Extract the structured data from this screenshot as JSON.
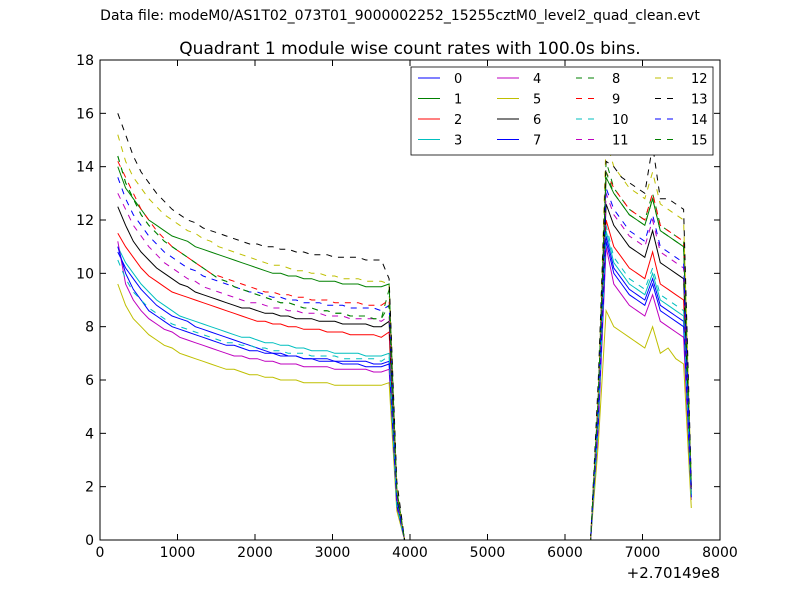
{
  "page": {
    "suptitle": "Data file: modeM0/AS1T02_073T01_9000002252_15255cztM0_level2_quad_clean.evt"
  },
  "chart_data": {
    "type": "line",
    "title": "Quadrant 1 module wise count rates with 100.0s bins.",
    "xlabel": "",
    "ylabel": "",
    "x_offset_label": "+2.70149e8",
    "xlim": [
      0,
      8000
    ],
    "ylim": [
      0,
      18
    ],
    "xticks": [
      0,
      1000,
      2000,
      3000,
      4000,
      5000,
      6000,
      7000,
      8000
    ],
    "yticks": [
      0,
      2,
      4,
      6,
      8,
      10,
      12,
      14,
      16,
      18
    ],
    "grid": false,
    "legend_position": "top-right",
    "legend_columns": 4,
    "x": [
      230,
      330,
      430,
      530,
      630,
      730,
      830,
      930,
      1030,
      1130,
      1230,
      1330,
      1430,
      1530,
      1630,
      1730,
      1830,
      1930,
      2030,
      2130,
      2230,
      2330,
      2430,
      2530,
      2630,
      2730,
      2830,
      2930,
      3030,
      3130,
      3230,
      3330,
      3430,
      3530,
      3630,
      3730,
      3830,
      3930,
      4030,
      6330,
      6430,
      6530,
      6630,
      6730,
      6830,
      6930,
      7030,
      7130,
      7230,
      7330,
      7430,
      7530,
      7630
    ],
    "series": [
      {
        "name": "0",
        "color": "#0000ff",
        "dash": false,
        "values": [
          10.8,
          10.2,
          9.8,
          9.4,
          9.1,
          8.8,
          8.6,
          8.4,
          8.3,
          8.2,
          8.0,
          7.9,
          7.8,
          7.7,
          7.6,
          7.5,
          7.4,
          7.3,
          7.2,
          7.1,
          7.0,
          7.0,
          6.9,
          6.9,
          6.8,
          6.8,
          6.7,
          6.7,
          6.7,
          6.6,
          6.6,
          6.6,
          6.5,
          6.5,
          6.5,
          6.6,
          1.3,
          0,
          0,
          0,
          4.5,
          11.2,
          10.0,
          9.6,
          9.2,
          9.0,
          8.8,
          9.6,
          8.6,
          8.4,
          8.2,
          8.0,
          1.7
        ]
      },
      {
        "name": "1",
        "color": "#008000",
        "dash": false,
        "values": [
          14.0,
          13.2,
          12.8,
          12.4,
          12.0,
          11.8,
          11.6,
          11.4,
          11.3,
          11.2,
          11.0,
          10.9,
          10.8,
          10.7,
          10.6,
          10.5,
          10.4,
          10.3,
          10.2,
          10.1,
          10.0,
          10.0,
          9.9,
          9.9,
          9.8,
          9.8,
          9.7,
          9.7,
          9.7,
          9.6,
          9.6,
          9.6,
          9.5,
          9.5,
          9.5,
          9.6,
          1.9,
          0,
          0,
          0,
          5.2,
          13.6,
          13.0,
          12.6,
          12.2,
          12.0,
          11.8,
          12.8,
          11.6,
          11.4,
          11.2,
          11.0,
          2.0
        ]
      },
      {
        "name": "2",
        "color": "#ff0000",
        "dash": false,
        "values": [
          11.5,
          11.0,
          10.6,
          10.2,
          9.9,
          9.7,
          9.5,
          9.3,
          9.2,
          9.1,
          9.0,
          8.9,
          8.8,
          8.7,
          8.6,
          8.5,
          8.4,
          8.3,
          8.2,
          8.2,
          8.1,
          8.1,
          8.0,
          8.0,
          7.9,
          7.9,
          7.9,
          7.8,
          7.8,
          7.8,
          7.7,
          7.7,
          7.7,
          7.7,
          7.6,
          7.8,
          1.5,
          0,
          0,
          0,
          4.8,
          12.0,
          11.0,
          10.6,
          10.2,
          10.0,
          9.8,
          10.8,
          9.6,
          9.4,
          9.2,
          9.0,
          1.8
        ]
      },
      {
        "name": "3",
        "color": "#00bfbf",
        "dash": false,
        "values": [
          11.0,
          10.4,
          10.0,
          9.6,
          9.3,
          9.0,
          8.8,
          8.6,
          8.4,
          8.3,
          8.2,
          8.1,
          8.0,
          7.9,
          7.8,
          7.7,
          7.6,
          7.6,
          7.5,
          7.4,
          7.4,
          7.3,
          7.3,
          7.2,
          7.2,
          7.1,
          7.1,
          7.1,
          7.0,
          7.0,
          7.0,
          7.0,
          6.9,
          6.9,
          6.9,
          7.0,
          1.4,
          0,
          0,
          0,
          4.6,
          11.6,
          10.4,
          10.0,
          9.6,
          9.4,
          9.2,
          10.0,
          9.0,
          8.8,
          8.6,
          8.4,
          1.7
        ]
      },
      {
        "name": "4",
        "color": "#bf00bf",
        "dash": false,
        "values": [
          11.2,
          9.6,
          9.0,
          8.6,
          8.3,
          8.1,
          7.9,
          7.8,
          7.6,
          7.5,
          7.4,
          7.3,
          7.2,
          7.1,
          7.0,
          6.9,
          6.9,
          6.8,
          6.8,
          6.7,
          6.7,
          6.6,
          6.6,
          6.6,
          6.5,
          6.5,
          6.5,
          6.5,
          6.4,
          6.4,
          6.4,
          6.4,
          6.4,
          6.3,
          6.3,
          6.4,
          1.2,
          0,
          0,
          0,
          4.2,
          11.0,
          9.6,
          9.2,
          8.8,
          8.6,
          8.4,
          9.2,
          8.2,
          8.0,
          7.8,
          7.6,
          1.5
        ]
      },
      {
        "name": "5",
        "color": "#bfbf00",
        "dash": false,
        "values": [
          9.6,
          8.8,
          8.3,
          8.0,
          7.7,
          7.5,
          7.3,
          7.2,
          7.0,
          6.9,
          6.8,
          6.7,
          6.6,
          6.5,
          6.4,
          6.4,
          6.3,
          6.2,
          6.2,
          6.1,
          6.1,
          6.0,
          6.0,
          6.0,
          5.9,
          5.9,
          5.9,
          5.9,
          5.8,
          5.8,
          5.8,
          5.8,
          5.8,
          5.8,
          5.8,
          5.9,
          1.1,
          0,
          0,
          0,
          3.6,
          8.6,
          8.0,
          7.8,
          7.6,
          7.4,
          7.2,
          8.0,
          7.0,
          7.2,
          6.8,
          6.6,
          1.2
        ]
      },
      {
        "name": "6",
        "color": "#000000",
        "dash": false,
        "values": [
          12.5,
          11.8,
          11.2,
          10.8,
          10.5,
          10.2,
          10.0,
          9.8,
          9.6,
          9.5,
          9.3,
          9.2,
          9.1,
          9.0,
          8.9,
          8.8,
          8.7,
          8.7,
          8.6,
          8.5,
          8.5,
          8.4,
          8.4,
          8.3,
          8.3,
          8.3,
          8.2,
          8.2,
          8.2,
          8.1,
          8.1,
          8.1,
          8.1,
          8.0,
          8.0,
          8.2,
          1.6,
          0,
          0,
          0,
          5.0,
          12.6,
          11.8,
          11.4,
          11.0,
          10.8,
          10.6,
          11.6,
          10.4,
          10.2,
          10.0,
          9.8,
          1.9
        ]
      },
      {
        "name": "7",
        "color": "#0000ff",
        "dash": false,
        "values": [
          11.0,
          10.0,
          9.4,
          9.0,
          8.6,
          8.4,
          8.2,
          8.0,
          7.9,
          7.8,
          7.7,
          7.6,
          7.5,
          7.4,
          7.3,
          7.3,
          7.2,
          7.1,
          7.1,
          7.0,
          7.0,
          6.9,
          6.9,
          6.9,
          6.8,
          6.8,
          6.8,
          6.8,
          6.7,
          6.7,
          6.7,
          6.7,
          6.7,
          6.6,
          6.6,
          6.7,
          1.3,
          0,
          0,
          0,
          4.4,
          11.4,
          10.2,
          9.8,
          9.4,
          9.2,
          9.0,
          9.8,
          8.8,
          8.6,
          8.4,
          8.2,
          1.6
        ]
      },
      {
        "name": "8",
        "color": "#008000",
        "dash": true,
        "values": [
          14.4,
          13.4,
          12.8,
          12.2,
          11.8,
          11.5,
          11.2,
          11.0,
          10.8,
          10.6,
          10.4,
          10.2,
          10.0,
          9.8,
          9.7,
          9.5,
          9.4,
          9.3,
          9.2,
          9.1,
          9.0,
          8.9,
          8.9,
          8.8,
          8.7,
          8.7,
          8.6,
          8.6,
          8.5,
          8.5,
          8.4,
          8.4,
          8.4,
          8.3,
          8.3,
          9.4,
          1.8,
          0,
          0,
          0,
          5.4,
          14.2,
          13.2,
          12.8,
          12.4,
          12.2,
          12.0,
          13.0,
          11.8,
          11.6,
          11.4,
          11.2,
          2.0
        ]
      },
      {
        "name": "9",
        "color": "#ff0000",
        "dash": true,
        "values": [
          14.2,
          13.6,
          13.0,
          12.4,
          12.0,
          11.6,
          11.3,
          11.0,
          10.8,
          10.6,
          10.4,
          10.2,
          10.0,
          9.9,
          9.8,
          9.7,
          9.6,
          9.5,
          9.4,
          9.3,
          9.3,
          9.2,
          9.2,
          9.1,
          9.1,
          9.0,
          9.0,
          9.0,
          8.9,
          8.9,
          8.9,
          8.9,
          8.8,
          8.8,
          8.8,
          9.0,
          1.8,
          0,
          0,
          0,
          5.4,
          13.8,
          13.2,
          12.8,
          12.4,
          12.2,
          12.0,
          13.0,
          11.8,
          11.6,
          11.4,
          11.2,
          2.0
        ]
      },
      {
        "name": "10",
        "color": "#00bfbf",
        "dash": true,
        "values": [
          10.5,
          9.8,
          9.3,
          9.0,
          8.7,
          8.5,
          8.3,
          8.1,
          8.0,
          7.9,
          7.8,
          7.7,
          7.6,
          7.5,
          7.4,
          7.4,
          7.3,
          7.3,
          7.2,
          7.2,
          7.1,
          7.1,
          7.0,
          7.0,
          7.0,
          6.9,
          6.9,
          6.9,
          6.9,
          6.8,
          6.8,
          6.8,
          6.8,
          6.8,
          6.7,
          6.9,
          1.3,
          0,
          0,
          0,
          4.4,
          11.8,
          10.6,
          10.2,
          9.8,
          9.6,
          9.4,
          10.2,
          9.2,
          9.0,
          8.8,
          8.6,
          1.6
        ]
      },
      {
        "name": "11",
        "color": "#bf00bf",
        "dash": true,
        "values": [
          13.0,
          12.4,
          11.8,
          11.4,
          11.0,
          10.7,
          10.4,
          10.2,
          10.0,
          9.8,
          9.7,
          9.5,
          9.4,
          9.3,
          9.2,
          9.1,
          9.0,
          8.9,
          8.9,
          8.8,
          8.7,
          8.7,
          8.6,
          8.6,
          8.5,
          8.5,
          8.5,
          8.4,
          8.4,
          8.4,
          8.3,
          8.3,
          8.3,
          8.3,
          8.2,
          8.4,
          1.6,
          0,
          0,
          0,
          5.0,
          13.0,
          12.2,
          11.8,
          11.4,
          11.2,
          11.0,
          12.0,
          10.8,
          10.6,
          10.4,
          10.2,
          1.9
        ]
      },
      {
        "name": "12",
        "color": "#bfbf00",
        "dash": true,
        "values": [
          15.2,
          14.2,
          13.6,
          13.2,
          12.8,
          12.5,
          12.2,
          12.0,
          11.8,
          11.6,
          11.5,
          11.3,
          11.2,
          11.0,
          10.9,
          10.8,
          10.7,
          10.6,
          10.5,
          10.4,
          10.3,
          10.3,
          10.2,
          10.1,
          10.1,
          10.0,
          10.0,
          9.9,
          9.9,
          9.8,
          9.8,
          9.8,
          9.7,
          9.7,
          9.7,
          9.6,
          2.0,
          0,
          0,
          0,
          5.6,
          15.0,
          14.0,
          13.6,
          13.2,
          13.0,
          12.8,
          13.8,
          12.6,
          12.4,
          12.2,
          12.0,
          2.1
        ]
      },
      {
        "name": "13",
        "color": "#000000",
        "dash": true,
        "values": [
          16.0,
          15.2,
          14.4,
          13.8,
          13.4,
          13.0,
          12.7,
          12.4,
          12.2,
          12.0,
          11.9,
          11.7,
          11.6,
          11.5,
          11.4,
          11.3,
          11.2,
          11.1,
          11.1,
          11.0,
          11.0,
          10.9,
          10.9,
          10.8,
          10.8,
          10.7,
          10.7,
          10.7,
          10.6,
          10.6,
          10.6,
          10.6,
          10.5,
          10.5,
          10.5,
          9.8,
          2.2,
          0,
          0,
          0,
          6.0,
          14.2,
          14.0,
          13.6,
          13.4,
          13.2,
          13.0,
          14.8,
          12.8,
          12.8,
          12.6,
          12.4,
          2.2
        ]
      },
      {
        "name": "14",
        "color": "#0000ff",
        "dash": true,
        "values": [
          13.6,
          12.8,
          12.2,
          11.8,
          11.4,
          11.1,
          10.8,
          10.6,
          10.4,
          10.2,
          10.1,
          9.9,
          9.8,
          9.7,
          9.6,
          9.5,
          9.4,
          9.3,
          9.3,
          9.2,
          9.1,
          9.1,
          9.0,
          9.0,
          8.9,
          8.9,
          8.9,
          8.8,
          8.8,
          8.8,
          8.7,
          8.7,
          8.7,
          8.7,
          8.6,
          8.8,
          1.7,
          0,
          0,
          0,
          5.2,
          13.2,
          12.4,
          12.0,
          11.6,
          11.4,
          11.2,
          12.2,
          11.0,
          10.8,
          10.6,
          10.4,
          1.9
        ]
      },
      {
        "name": "15",
        "color": "#008000",
        "dash": true,
        "values": [
          14.4,
          13.4,
          12.8,
          12.2,
          11.8,
          11.5,
          11.2,
          11.0,
          10.8,
          10.6,
          10.4,
          10.2,
          10.0,
          9.8,
          9.7,
          9.5,
          9.4,
          9.3,
          9.2,
          9.1,
          9.0,
          8.9,
          8.9,
          8.8,
          8.7,
          8.7,
          8.6,
          8.6,
          8.5,
          8.5,
          8.4,
          8.4,
          8.4,
          8.3,
          8.3,
          8.8,
          1.8,
          0,
          0,
          0,
          5.4,
          13.8,
          13.0,
          12.6,
          12.2,
          12.0,
          11.8,
          12.8,
          11.6,
          11.4,
          11.2,
          11.0,
          2.0
        ]
      }
    ]
  }
}
